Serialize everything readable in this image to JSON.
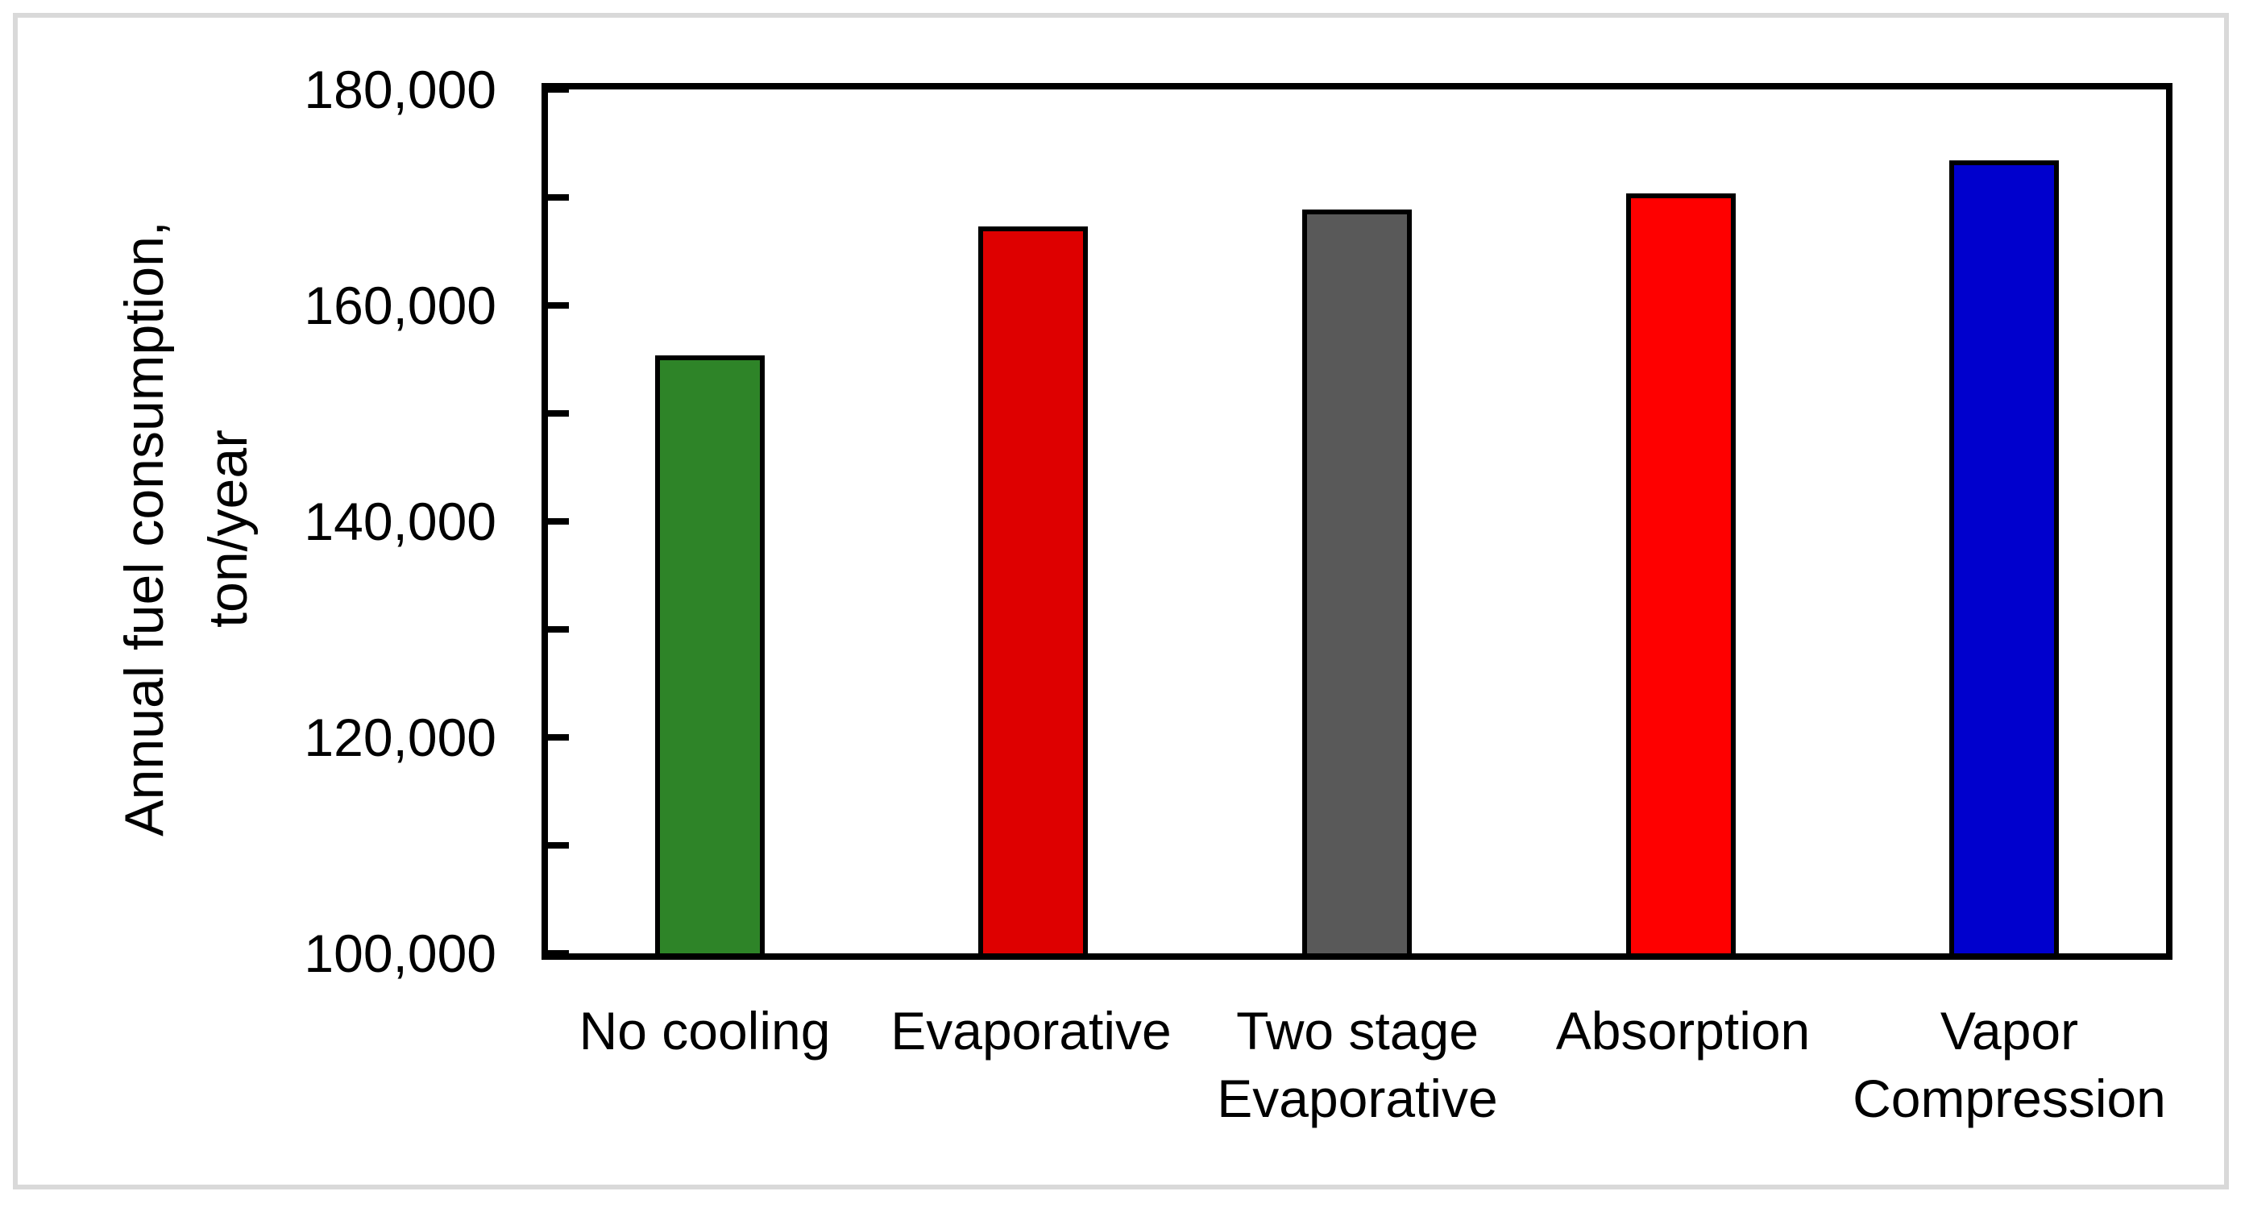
{
  "chart_data": {
    "type": "bar",
    "title": "",
    "categories": [
      "No cooling",
      "Evaporative",
      "Two stage Evaporative",
      "Absorption",
      "Vapor Compression"
    ],
    "categories_lines": [
      [
        "No cooling"
      ],
      [
        "Evaporative"
      ],
      [
        "Two stage",
        "Evaporative"
      ],
      [
        "Absorption"
      ],
      [
        "Vapor",
        "Compression"
      ]
    ],
    "values": [
      155400,
      167300,
      168900,
      170400,
      173400
    ],
    "bar_colors": [
      "#2e8428",
      "#de0000",
      "#595959",
      "#fe0000",
      "#0000cd"
    ],
    "bar_border_color": "#000000",
    "ylabel_line1": "Annual fuel consumption,",
    "ylabel_line2": "ton/year",
    "xlabel": "",
    "ylim": [
      100000,
      180000
    ],
    "ytick_minor_step": 10000,
    "ytick_major_step": 20000,
    "ytick_labels": [
      "100,000",
      "120,000",
      "140,000",
      "160,000",
      "180,000"
    ],
    "grid": false,
    "legend": false,
    "plot_border_color": "#000000",
    "frame_border_color": "#d9d9d9",
    "background_color": "#ffffff"
  }
}
